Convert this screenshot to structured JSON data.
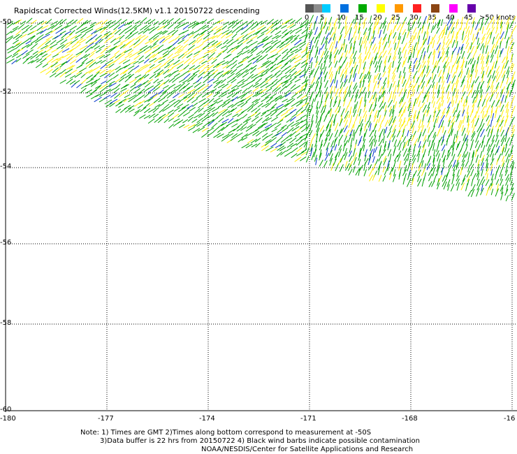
{
  "title": "Rapidscat Corrected Winds(12.5KM) v1.1 20150722 descending",
  "legend": {
    "labels": [
      "0",
      "5",
      "10",
      "15",
      "20",
      "25",
      "30",
      "35",
      "40",
      "45",
      ">50 knots"
    ],
    "colors": [
      "#555555",
      "#8c8c8c",
      "#00ccff",
      "#0070e0",
      "#00aa00",
      "#ffff00",
      "#ff9900",
      "#ff2020",
      "#8b4513",
      "#ff00ff",
      "#6600aa"
    ]
  },
  "lat_labels": [
    "-50",
    "-52",
    "-54",
    "-56",
    "-58",
    "-60"
  ],
  "lon_labels": [
    "-180",
    "-177",
    "-174",
    "-171",
    "-168",
    "-16"
  ],
  "notes": {
    "line1": "Note: 1) Times are GMT 2)Times along bottom correspond to measurement at -50S",
    "line2": "3)Data buffer is 22 hrs from 20150722 4) Black wind barbs indicate possible contamination",
    "line3": "NOAA/NESDIS/Center for Satellite Applications and Research"
  },
  "barb_colors": {
    "green": "#00a000",
    "yellow": "#ffee00",
    "blue": "#0033cc"
  }
}
